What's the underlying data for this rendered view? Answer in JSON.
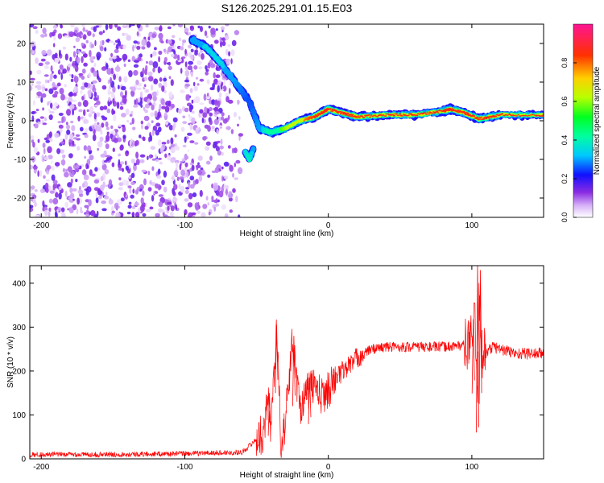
{
  "title": "S126.2025.291.01.15.E03",
  "chart_data": [
    {
      "type": "heatmap",
      "xlabel": "Height of straight line (km)",
      "ylabel": "Frequency (Hz)",
      "xlim": [
        -208,
        150
      ],
      "ylim": [
        -25,
        25
      ],
      "xticks": [
        -200,
        -100,
        0,
        100
      ],
      "xtick_labels": [
        "-200",
        "-100",
        "0",
        "100"
      ],
      "yticks": [
        -20,
        -10,
        0,
        10,
        20
      ],
      "ytick_labels": [
        "-20",
        "-10",
        "0",
        "10",
        "20"
      ],
      "colorbar": {
        "label": "Normalized spectral amplitude",
        "range": [
          0,
          1
        ],
        "ticks": [
          0.0,
          0.2,
          0.4,
          0.6,
          0.8
        ],
        "tick_labels": [
          "0.0",
          "0.2",
          "0.4",
          "0.6",
          "0.8"
        ],
        "colormap": [
          "#ffffff",
          "#d8b4f8",
          "#8a2be2",
          "#1010ff",
          "#00e5ff",
          "#00ff40",
          "#b8ff00",
          "#ffd000",
          "#ff3000",
          "#ff1493"
        ]
      },
      "ridge": {
        "name": "dominant frequency",
        "x": [
          -95,
          -85,
          -75,
          -65,
          -55,
          -48,
          -40,
          -30,
          -20,
          -10,
          -5,
          0,
          10,
          20,
          40,
          60,
          80,
          85,
          95,
          105,
          120,
          150
        ],
        "y": [
          21,
          19,
          15,
          10,
          5,
          -2,
          -3,
          -2,
          0,
          1,
          2,
          3,
          2,
          1,
          1.5,
          1.5,
          2.5,
          3,
          2,
          0.5,
          1.5,
          1.5
        ],
        "amplitude": [
          0.3,
          0.35,
          0.35,
          0.3,
          0.25,
          0.3,
          0.45,
          0.6,
          0.75,
          0.85,
          0.9,
          0.85,
          0.95,
          0.9,
          1.0,
          1.0,
          1.0,
          0.95,
          0.9,
          0.95,
          1.0,
          1.0
        ]
      },
      "secondary": {
        "x": [
          -58,
          -55,
          -52
        ],
        "y": [
          -8,
          -10,
          -7
        ],
        "amplitude": [
          0.35,
          0.4,
          0.3
        ]
      },
      "noise_region": {
        "x_range": [
          -208,
          -60
        ],
        "y_range": [
          -25,
          25
        ],
        "amplitude": 0.15
      }
    },
    {
      "type": "line",
      "xlabel": "Height of straight line (km)",
      "ylabel": "SNR (10 * v/v)",
      "xlim": [
        -208,
        150
      ],
      "ylim": [
        0,
        440
      ],
      "xticks": [
        -200,
        -100,
        0,
        100
      ],
      "xtick_labels": [
        "-200",
        "-100",
        "0",
        "100"
      ],
      "yticks": [
        0,
        100,
        200,
        300,
        400
      ],
      "ytick_labels": [
        "0",
        "100",
        "200",
        "300",
        "400"
      ],
      "series": [
        {
          "name": "SNR",
          "color": "#ff0000",
          "x": [
            -208,
            -150,
            -100,
            -60,
            -45,
            -42,
            -40,
            -36,
            -33,
            -30,
            -25,
            -20,
            -15,
            -10,
            -5,
            0,
            5,
            10,
            20,
            30,
            40,
            60,
            80,
            98,
            102,
            104,
            105,
            106,
            108,
            115,
            130,
            150
          ],
          "y": [
            10,
            10,
            12,
            15,
            60,
            140,
            70,
            300,
            25,
            80,
            270,
            120,
            150,
            170,
            140,
            160,
            180,
            200,
            230,
            250,
            255,
            255,
            255,
            260,
            310,
            120,
            410,
            250,
            240,
            255,
            240,
            240
          ],
          "spikes": [
            {
              "x": -41,
              "y": 150
            },
            {
              "x": -36,
              "y": 305
            },
            {
              "x": -24,
              "y": 280
            },
            {
              "x": -13,
              "y": 185
            },
            {
              "x": 101,
              "y": 318
            },
            {
              "x": 104,
              "y": 440
            },
            {
              "x": 106,
              "y": 430
            }
          ]
        }
      ]
    }
  ]
}
